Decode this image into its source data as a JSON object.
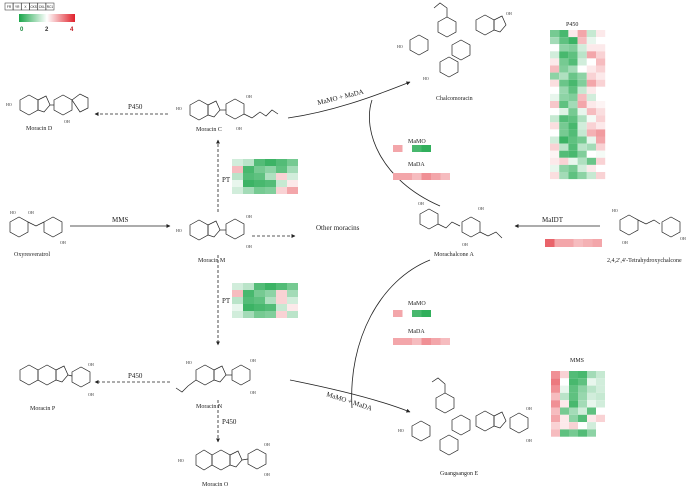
{
  "legend": {
    "tissues": [
      "FR",
      "YR",
      "X",
      "CKS",
      "CKL",
      "RC1"
    ],
    "scale_labels": [
      "0",
      "2",
      "4"
    ],
    "colors": {
      "low": "#1aa64a",
      "mid": "#ffffff",
      "high": "#e0202a"
    }
  },
  "compounds": {
    "moracin_d": "Moracin D",
    "moracin_c": "Moracin C",
    "chalcomoracin": "Chalcomoracin",
    "oxyresveratrol": "Oxyresveratrol",
    "moracin_m": "Moracin M",
    "other_moracins": "Other moracins",
    "morachalcone_a": "Morachalcone A",
    "tetrahydroxychalcone": "2,4,2′,4′-Tetrahydroxychalcone",
    "moracin_p": "Moracin P",
    "moracin_n": "Moracin N",
    "moracin_o": "Moracin O",
    "guangsangon_e": "Guangsangon E"
  },
  "enzymes": {
    "p450_c_d": "P450",
    "mama_mada_top": "MaMO + MaDA",
    "pt_m_c": "PT",
    "mms": "MMS",
    "pt_m_n": "PT",
    "p450_n_p": "P450",
    "p450_n_o": "P450",
    "mama_mada_bottom": "MaMO + MaDA",
    "maidt": "MaIDT"
  },
  "heatmaps": {
    "p450": {
      "title": "P450",
      "rows": [
        [
          0.8,
          0.4,
          2.2,
          2.8,
          1.5,
          2.2
        ],
        [
          1.2,
          0.6,
          0.3,
          2.6,
          1.8,
          2.0
        ],
        [
          2.0,
          1.0,
          0.9,
          1.6,
          2.2,
          2.2
        ],
        [
          1.6,
          0.4,
          0.6,
          1.4,
          2.8,
          2.4
        ],
        [
          2.2,
          0.8,
          0.5,
          1.6,
          2.0,
          2.6
        ],
        [
          2.6,
          0.9,
          1.2,
          2.0,
          2.2,
          2.4
        ],
        [
          1.0,
          1.3,
          0.7,
          1.0,
          2.4,
          2.2
        ],
        [
          2.3,
          0.7,
          0.4,
          0.9,
          2.8,
          2.4
        ],
        [
          2.0,
          1.1,
          0.6,
          1.5,
          2.2,
          2.0
        ],
        [
          1.8,
          1.0,
          0.9,
          2.6,
          1.6,
          2.0
        ],
        [
          2.5,
          0.6,
          1.2,
          2.8,
          2.2,
          2.1
        ],
        [
          2.0,
          1.7,
          0.8,
          1.8,
          2.6,
          2.3
        ],
        [
          1.5,
          0.5,
          0.6,
          1.3,
          1.9,
          2.4
        ],
        [
          2.3,
          0.8,
          0.4,
          1.6,
          2.4,
          2.2
        ],
        [
          2.0,
          0.8,
          0.5,
          1.5,
          2.7,
          2.9
        ],
        [
          1.6,
          0.3,
          0.6,
          0.8,
          1.8,
          2.8
        ],
        [
          2.4,
          1.4,
          0.5,
          1.4,
          1.2,
          2.4
        ],
        [
          2.1,
          0.5,
          0.4,
          0.9,
          2.0,
          1.9
        ],
        [
          2.2,
          2.4,
          1.8,
          1.3,
          0.7,
          2.4
        ],
        [
          1.8,
          1.0,
          0.8,
          1.6,
          2.2,
          2.0
        ],
        [
          2.3,
          1.2,
          0.6,
          1.0,
          1.5,
          2.4
        ]
      ]
    },
    "pt_top": {
      "title": "PT",
      "rows": [
        [
          1.6,
          1.4,
          0.5,
          0.3,
          0.5,
          0.8
        ],
        [
          2.6,
          0.4,
          0.8,
          1.0,
          0.6,
          1.2
        ],
        [
          1.4,
          0.5,
          0.6,
          1.3,
          2.4,
          1.6
        ],
        [
          1.8,
          0.3,
          0.4,
          0.5,
          1.5,
          2.2
        ],
        [
          1.6,
          1.2,
          0.8,
          0.9,
          2.4,
          2.8
        ]
      ]
    },
    "pt_bottom": {
      "title": "PT",
      "rows": [
        [
          1.6,
          1.4,
          0.5,
          0.3,
          0.5,
          0.8
        ],
        [
          2.6,
          0.4,
          0.8,
          1.0,
          2.4,
          1.2
        ],
        [
          1.4,
          0.5,
          0.6,
          1.3,
          2.4,
          1.6
        ],
        [
          1.8,
          0.3,
          0.4,
          0.5,
          1.5,
          2.2
        ],
        [
          1.6,
          1.2,
          0.8,
          0.9,
          2.4,
          1.4
        ]
      ]
    },
    "mamo_top": {
      "title": "MaMO",
      "rows": [
        [
          2.8,
          2.0,
          0.4,
          0.2,
          2.0,
          2.0
        ]
      ]
    },
    "mada_top": {
      "title": "MaDA",
      "rows": [
        [
          2.8,
          2.8,
          2.6,
          3.0,
          2.8,
          2.6
        ]
      ]
    },
    "mamo_bottom": {
      "title": "MaMO",
      "rows": [
        [
          2.8,
          2.0,
          0.4,
          0.2,
          2.0,
          2.0
        ]
      ]
    },
    "mada_bottom": {
      "title": "MaDA",
      "rows": [
        [
          2.8,
          2.8,
          2.6,
          3.0,
          2.8,
          2.6
        ]
      ]
    },
    "maidt": {
      "title": "",
      "rows": [
        [
          3.4,
          2.8,
          2.8,
          2.6,
          2.7,
          2.8
        ]
      ]
    },
    "mms": {
      "title": "MMS",
      "rows": [
        [
          3.0,
          2.4,
          0.5,
          0.4,
          1.2,
          1.5
        ],
        [
          3.2,
          2.0,
          0.4,
          0.6,
          1.8,
          1.6
        ],
        [
          3.0,
          1.8,
          0.6,
          1.0,
          1.4,
          1.6
        ],
        [
          2.6,
          1.4,
          0.6,
          1.1,
          1.6,
          1.5
        ],
        [
          3.0,
          2.2,
          0.4,
          1.2,
          1.8,
          1.6
        ],
        [
          2.6,
          0.8,
          1.2,
          1.6,
          0.6,
          2.0
        ],
        [
          2.8,
          2.2,
          1.0,
          0.5,
          2.2,
          2.4
        ],
        [
          2.4,
          2.2,
          2.4,
          2.0,
          1.6,
          2.0
        ],
        [
          2.6,
          0.6,
          0.8,
          0.5,
          1.0,
          2.0
        ]
      ]
    }
  }
}
